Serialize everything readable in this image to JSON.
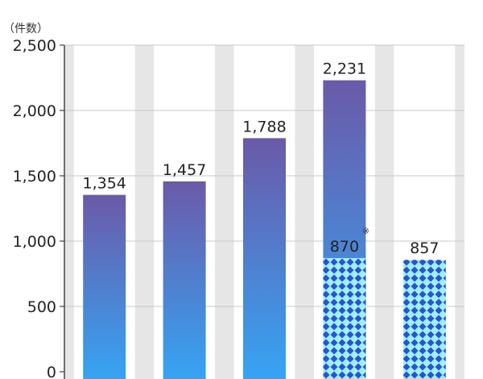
{
  "chart_data": {
    "type": "bar",
    "unit_label": "（件数）",
    "ylim": [
      0,
      2500
    ],
    "yticks": [
      0,
      500,
      1000,
      1500,
      2000,
      2500
    ],
    "ytick_labels": [
      "0",
      "500",
      "1,000",
      "1,500",
      "2,000",
      "2,500"
    ],
    "grid": true,
    "categories": [
      "",
      "",
      "",
      "",
      ""
    ],
    "series": [
      {
        "style": "gradient",
        "values": [
          1354,
          1457,
          1788,
          2231,
          null
        ],
        "labels": [
          "1,354",
          "1,457",
          "1,788",
          "2,231",
          ""
        ]
      },
      {
        "style": "diamond-pattern",
        "values": [
          null,
          null,
          null,
          870,
          857
        ],
        "labels": [
          "",
          "",
          "",
          "870",
          "857"
        ]
      }
    ],
    "annotations": [
      {
        "bar_index": 3,
        "text": "※"
      }
    ],
    "colors": {
      "gradient_top": "#6a5aa8",
      "gradient_bottom": "#36a4f4",
      "pattern_bg": "#9ff0f0",
      "pattern_fg": "#2a52d6",
      "panel": "#e6e6e6",
      "grid": "#c8c8c8",
      "column_bg": "#ffffff"
    }
  }
}
